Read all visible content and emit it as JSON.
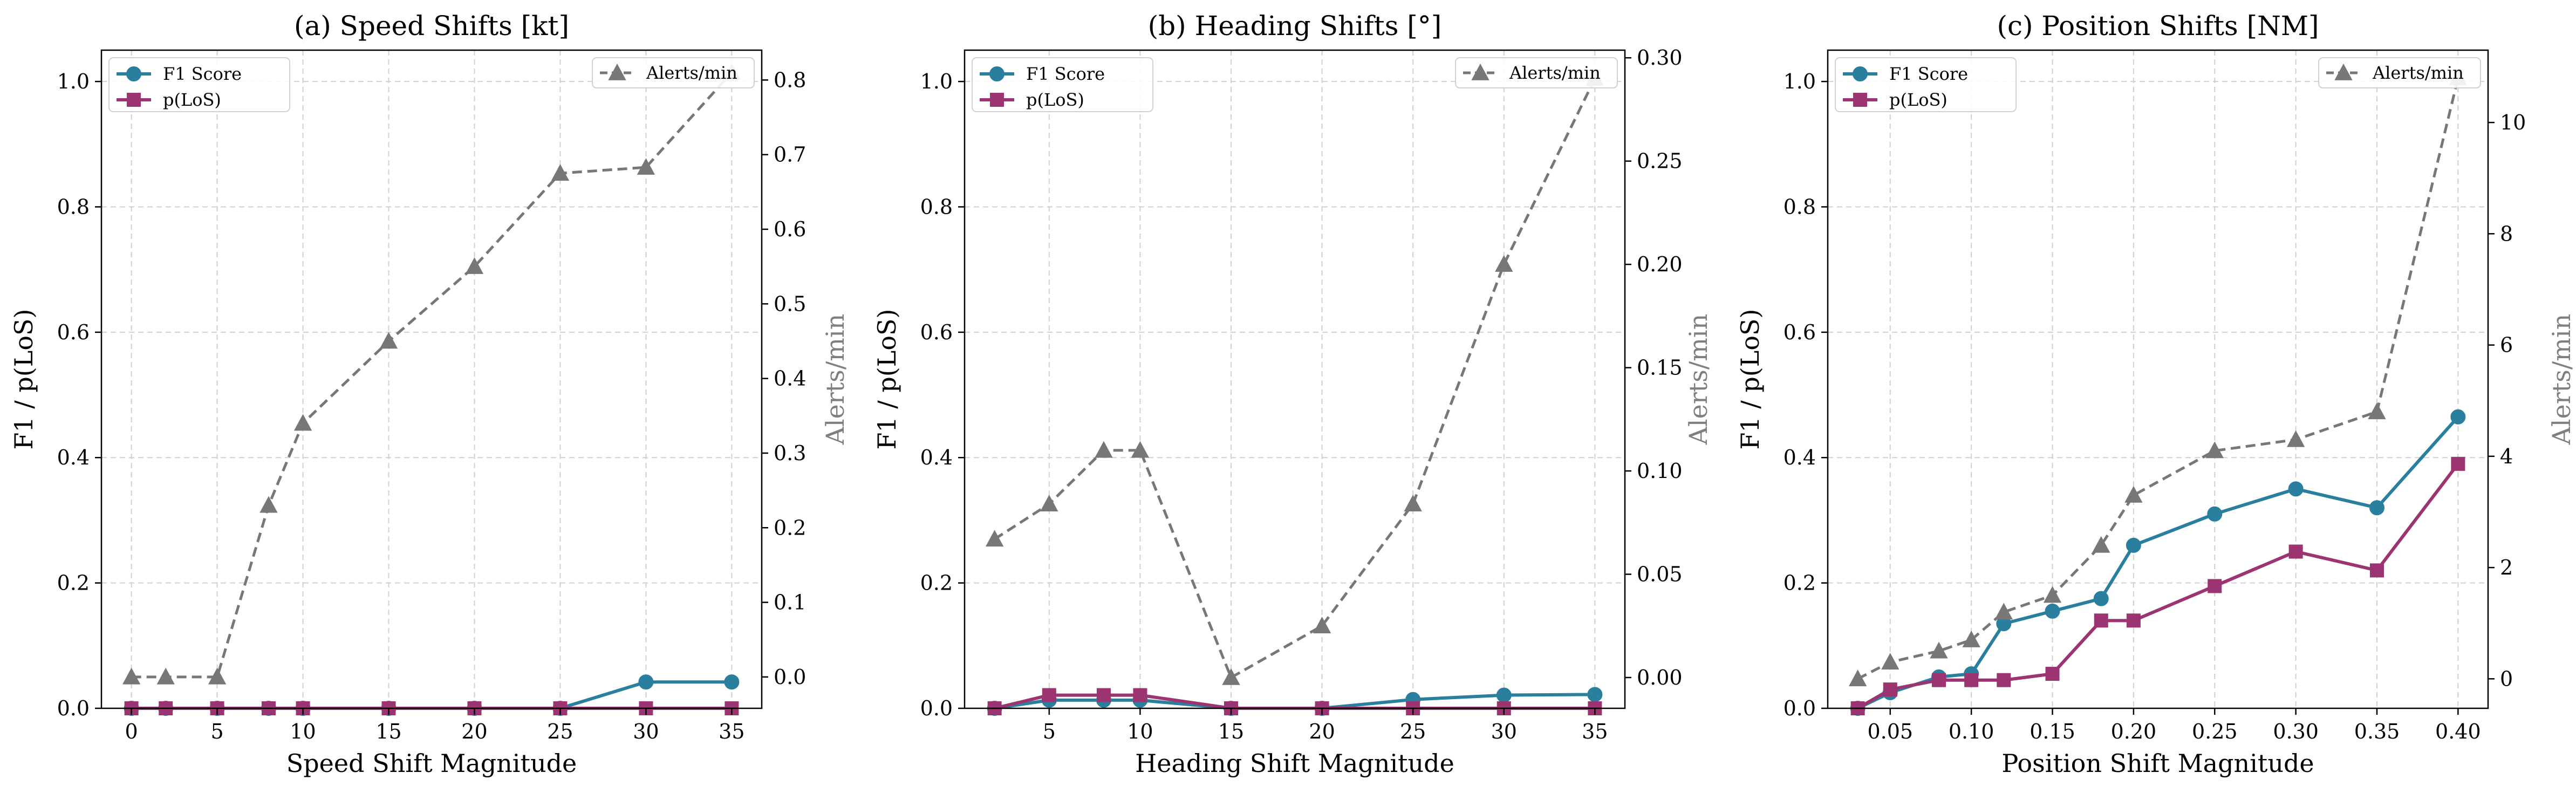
{
  "figure": {
    "colors": {
      "f1": "#2a7f9e",
      "plos": "#9b3470",
      "alerts": "#777777",
      "grid": "#d0d0d0",
      "axis": "#000000",
      "secondary_label": "#7f7f7f"
    }
  },
  "chart_data": [
    {
      "type": "line",
      "title": "(a) Speed Shifts [kt]",
      "xlabel": "Speed Shift Magnitude",
      "ylabel": "F1 / p(LoS)",
      "y2label": "Alerts/min",
      "x": [
        0,
        2,
        5,
        8,
        10,
        15,
        20,
        25,
        30,
        35
      ],
      "xticks": [
        0,
        5,
        10,
        15,
        20,
        25,
        30,
        35
      ],
      "xtick_labels": [
        "0",
        "5",
        "10",
        "15",
        "20",
        "25",
        "30",
        "35"
      ],
      "xlim": [
        -1.75,
        36.75
      ],
      "ylim": [
        0,
        1.05
      ],
      "yticks": [
        0.0,
        0.2,
        0.4,
        0.6,
        0.8,
        1.0
      ],
      "ytick_labels": [
        "0.0",
        "0.2",
        "0.4",
        "0.6",
        "0.8",
        "1.0"
      ],
      "y2lim": [
        -0.042,
        0.84
      ],
      "y2ticks": [
        0.0,
        0.1,
        0.2,
        0.3,
        0.4,
        0.5,
        0.6,
        0.7,
        0.8
      ],
      "y2tick_labels": [
        "0.0",
        "0.1",
        "0.2",
        "0.3",
        "0.4",
        "0.5",
        "0.6",
        "0.7",
        "0.8"
      ],
      "grid": true,
      "legend_left": "top-left",
      "legend_right": "top-right",
      "series": [
        {
          "name": "F1 Score",
          "axis": "left",
          "marker": "circle",
          "style": "solid",
          "values": [
            0,
            0,
            0,
            0,
            0,
            0,
            0,
            0,
            0.042,
            0.042
          ]
        },
        {
          "name": "p(LoS)",
          "axis": "left",
          "marker": "square",
          "style": "solid",
          "values": [
            0,
            0,
            0,
            0,
            0,
            0,
            0,
            0,
            0,
            0
          ]
        },
        {
          "name": "Alerts/min",
          "axis": "right",
          "marker": "triangle",
          "style": "dashed",
          "values": [
            0.0,
            0.0,
            0.0,
            0.23,
            0.34,
            0.45,
            0.55,
            0.675,
            0.683,
            0.81
          ]
        }
      ]
    },
    {
      "type": "line",
      "title": "(b) Heading Shifts [°]",
      "xlabel": "Heading Shift Magnitude",
      "ylabel": "F1 / p(LoS)",
      "y2label": "Alerts/min",
      "x": [
        2,
        5,
        8,
        10,
        15,
        20,
        25,
        30,
        35
      ],
      "xticks": [
        5,
        10,
        15,
        20,
        25,
        30,
        35
      ],
      "xtick_labels": [
        "5",
        "10",
        "15",
        "20",
        "25",
        "30",
        "35"
      ],
      "xlim": [
        0.35,
        36.65
      ],
      "ylim": [
        0,
        1.05
      ],
      "yticks": [
        0.0,
        0.2,
        0.4,
        0.6,
        0.8,
        1.0
      ],
      "ytick_labels": [
        "0.0",
        "0.2",
        "0.4",
        "0.6",
        "0.8",
        "1.0"
      ],
      "y2lim": [
        -0.0149,
        0.3037
      ],
      "y2ticks": [
        0.0,
        0.05,
        0.1,
        0.15,
        0.2,
        0.25,
        0.3
      ],
      "y2tick_labels": [
        "0.00",
        "0.05",
        "0.10",
        "0.15",
        "0.20",
        "0.25",
        "0.30"
      ],
      "grid": true,
      "legend_left": "top-left",
      "legend_right": "top-right",
      "series": [
        {
          "name": "F1 Score",
          "axis": "left",
          "marker": "circle",
          "style": "solid",
          "values": [
            0,
            0.013,
            0.013,
            0.013,
            0,
            0,
            0.014,
            0.021,
            0.022
          ]
        },
        {
          "name": "p(LoS)",
          "axis": "left",
          "marker": "square",
          "style": "solid",
          "values": [
            0,
            0.021,
            0.021,
            0.021,
            0,
            0,
            0,
            0,
            0
          ]
        },
        {
          "name": "Alerts/min",
          "axis": "right",
          "marker": "triangle",
          "style": "dashed",
          "values": [
            0.067,
            0.084,
            0.11,
            0.11,
            0.0,
            0.025,
            0.084,
            0.2,
            0.29
          ]
        }
      ]
    },
    {
      "type": "line",
      "title": "(c) Position Shifts [NM]",
      "xlabel": "Position Shift Magnitude",
      "ylabel": "F1 / p(LoS)",
      "y2label": "Alerts/min",
      "x": [
        0.03,
        0.05,
        0.08,
        0.1,
        0.12,
        0.15,
        0.18,
        0.2,
        0.25,
        0.3,
        0.35,
        0.4
      ],
      "xticks": [
        0.05,
        0.1,
        0.15,
        0.2,
        0.25,
        0.3,
        0.35,
        0.4
      ],
      "xtick_labels": [
        "0.05",
        "0.10",
        "0.15",
        "0.20",
        "0.25",
        "0.30",
        "0.35",
        "0.40"
      ],
      "xlim": [
        0.0115,
        0.4185
      ],
      "ylim": [
        0,
        1.05
      ],
      "yticks": [
        0.0,
        0.2,
        0.4,
        0.6,
        0.8,
        1.0
      ],
      "ytick_labels": [
        "0.0",
        "0.2",
        "0.4",
        "0.6",
        "0.8",
        "1.0"
      ],
      "y2lim": [
        -0.53,
        11.3
      ],
      "y2ticks": [
        0,
        2,
        4,
        6,
        8,
        10
      ],
      "y2tick_labels": [
        "0",
        "2",
        "4",
        "6",
        "8",
        "10"
      ],
      "grid": true,
      "legend_left": "top-left",
      "legend_right": "top-right",
      "series": [
        {
          "name": "F1 Score",
          "axis": "left",
          "marker": "circle",
          "style": "solid",
          "values": [
            0.0,
            0.025,
            0.05,
            0.055,
            0.135,
            0.155,
            0.175,
            0.26,
            0.31,
            0.35,
            0.32,
            0.465
          ]
        },
        {
          "name": "p(LoS)",
          "axis": "left",
          "marker": "square",
          "style": "solid",
          "values": [
            0.0,
            0.03,
            0.045,
            0.045,
            0.045,
            0.055,
            0.14,
            0.14,
            0.195,
            0.25,
            0.22,
            0.39
          ]
        },
        {
          "name": "Alerts/min",
          "axis": "right",
          "marker": "triangle",
          "style": "dashed",
          "values": [
            0.0,
            0.3,
            0.5,
            0.7,
            1.2,
            1.5,
            2.4,
            3.3,
            4.1,
            4.3,
            4.8,
            10.8
          ]
        }
      ]
    }
  ]
}
